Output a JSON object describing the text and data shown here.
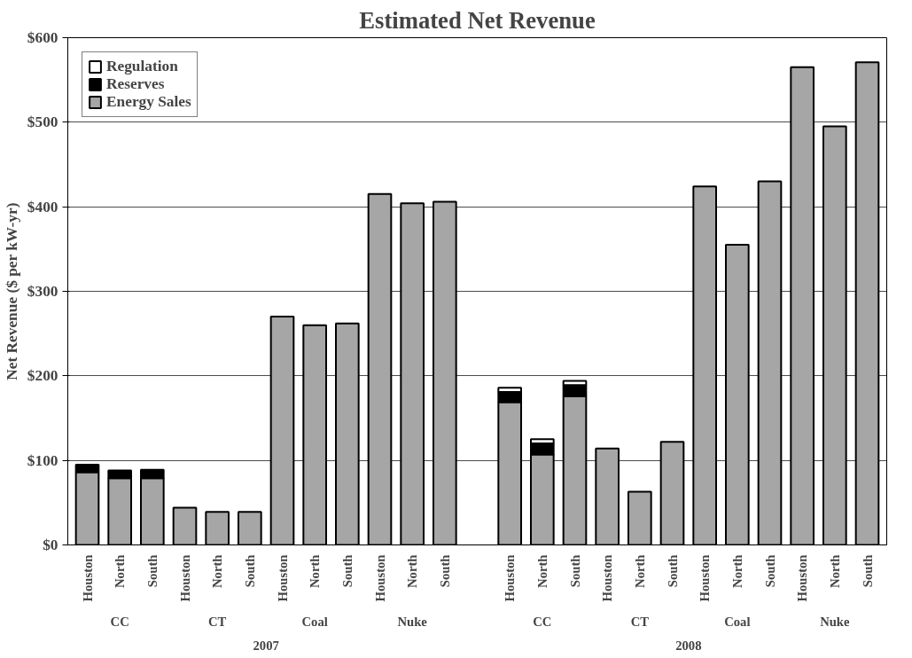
{
  "chart_data": {
    "type": "bar",
    "title": "Estimated Net Revenue",
    "ylabel": "Net Revenue ($ per kW-yr)",
    "stacked": true,
    "categories": [
      "Houston",
      "North",
      "South",
      "Houston",
      "North",
      "South",
      "Houston",
      "North",
      "South",
      "Houston",
      "North",
      "South",
      null,
      "Houston",
      "North",
      "South",
      "Houston",
      "North",
      "South",
      "Houston",
      "North",
      "South",
      "Houston",
      "North",
      "South"
    ],
    "series": [
      {
        "name": "Energy Sales",
        "color": "#a6a6a6",
        "values": [
          86,
          79,
          79,
          44,
          39,
          39,
          270,
          260,
          262,
          415,
          404,
          406,
          null,
          169,
          107,
          176,
          114,
          63,
          122,
          424,
          355,
          430,
          565,
          495,
          571
        ]
      },
      {
        "name": "Reserves",
        "color": "#000000",
        "values": [
          9,
          9,
          10,
          null,
          null,
          null,
          null,
          null,
          null,
          null,
          null,
          null,
          null,
          12,
          13,
          13,
          null,
          null,
          null,
          null,
          null,
          null,
          null,
          null,
          null
        ]
      },
      {
        "name": "Regulation",
        "color": "#ffffff",
        "values": [
          null,
          null,
          null,
          null,
          null,
          null,
          null,
          null,
          null,
          null,
          null,
          null,
          null,
          5,
          5,
          5,
          null,
          null,
          null,
          null,
          null,
          null,
          null,
          null,
          null
        ]
      }
    ],
    "annotations": [
      "CC",
      "CT",
      "Coal",
      "Nuke",
      "CC",
      "CT",
      "Coal",
      "Nuke",
      "2007",
      "2008"
    ],
    "ylim": [
      0,
      600
    ],
    "yticks": [
      {
        "value": 0,
        "label": "$0"
      },
      {
        "value": 100,
        "label": "$100"
      },
      {
        "value": 200,
        "label": "$200"
      },
      {
        "value": 300,
        "label": "$300"
      },
      {
        "value": 400,
        "label": "$400"
      },
      {
        "value": 500,
        "label": "$500"
      },
      {
        "value": 600,
        "label": "$600"
      }
    ],
    "grid": "y",
    "legend": "top left"
  }
}
